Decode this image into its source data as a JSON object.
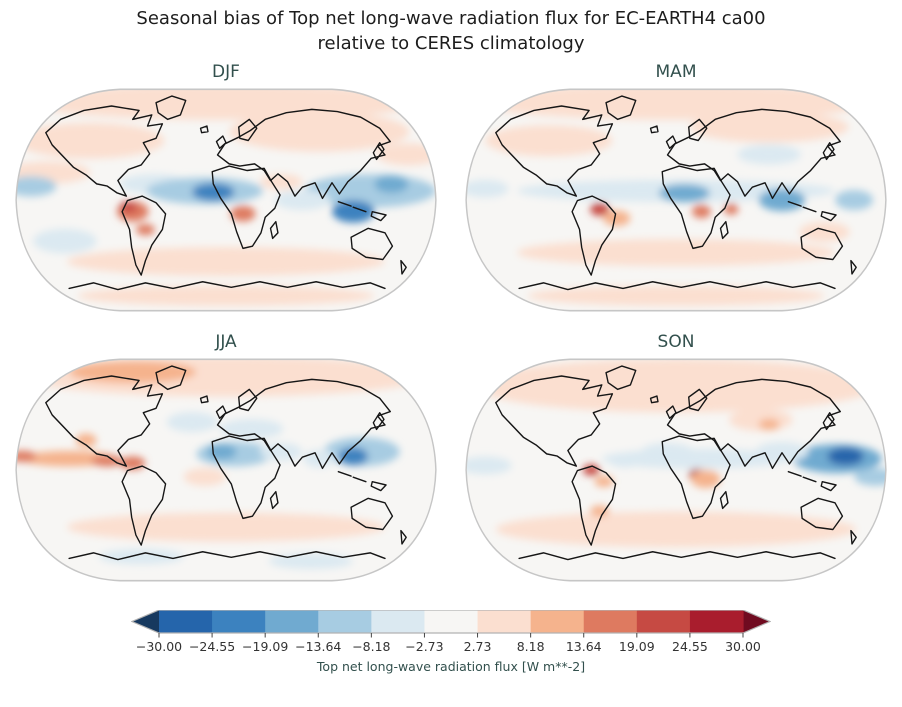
{
  "figure": {
    "title_line1": "Seasonal bias of Top net long-wave radiation flux for EC-EARTH4 ca00",
    "title_line2": "relative to CERES climatology"
  },
  "panels": [
    {
      "label": "DJF"
    },
    {
      "label": "MAM"
    },
    {
      "label": "JJA"
    },
    {
      "label": "SON"
    }
  ],
  "colorbar": {
    "label": "Top net long-wave radiation flux [W m**-2]"
  },
  "colors": {
    "title": "#1d1d1d",
    "panel_title": "#32504d",
    "tick_label": "#333333",
    "colorbar_label": "#32504d",
    "coastline": "#161616",
    "map_edge": "#c6c6c6",
    "map_base": "#f7f6f4"
  },
  "chart_data": {
    "type": "heatmap",
    "subtype": "filled-contour global bias maps, Robinson projection, 2x2 seasonal panels",
    "title": "Seasonal bias of Top net long-wave radiation flux for EC-EARTH4 ca00 relative to CERES climatology",
    "variable": "Top net long-wave radiation flux",
    "units": "W m**-2",
    "model": "EC-EARTH4 ca00",
    "reference": "CERES climatology",
    "panels": [
      "DJF",
      "MAM",
      "JJA",
      "SON"
    ],
    "colorbar": {
      "orientation": "horizontal",
      "extend": "both",
      "levels": [
        -30.0,
        -24.55,
        -19.09,
        -13.64,
        -8.18,
        -2.73,
        2.73,
        8.18,
        13.64,
        19.09,
        24.55,
        30.0
      ],
      "tick_labels": [
        "−30.00",
        "−24.55",
        "−19.09",
        "−13.64",
        "−8.18",
        "−2.73",
        "2.73",
        "8.18",
        "13.64",
        "19.09",
        "24.55",
        "30.00"
      ],
      "colors": [
        "#2565ab",
        "#3c82bf",
        "#70aad0",
        "#a7cce2",
        "#dbe9f1",
        "#f7f6f4",
        "#fbdfd0",
        "#f5b38d",
        "#de7a60",
        "#c64a43",
        "#a91d2d"
      ],
      "under": "#17395f",
      "over": "#700b20",
      "label": "Top net long-wave radiation flux [W m**-2]"
    },
    "blob_format": "[x_fraction, y_fraction, rx_px_of_400w, ry_px_of_205h, bias_value_W_per_m2]",
    "anomaly_blobs": {
      "DJF": [
        [
          0.5,
          0.07,
          190,
          16,
          5
        ],
        [
          0.18,
          0.24,
          70,
          16,
          4
        ],
        [
          0.72,
          0.2,
          85,
          18,
          4
        ],
        [
          0.08,
          0.38,
          40,
          10,
          6
        ],
        [
          0.93,
          0.3,
          30,
          10,
          6
        ],
        [
          0.33,
          0.43,
          32,
          9,
          -8
        ],
        [
          0.45,
          0.46,
          55,
          12,
          -12
        ],
        [
          0.47,
          0.465,
          20,
          8,
          -21
        ],
        [
          0.04,
          0.44,
          24,
          9,
          -12
        ],
        [
          0.84,
          0.46,
          62,
          15,
          -13
        ],
        [
          0.8,
          0.55,
          20,
          10,
          -21
        ],
        [
          0.89,
          0.43,
          16,
          8,
          -18
        ],
        [
          0.68,
          0.5,
          26,
          9,
          -7
        ],
        [
          0.28,
          0.55,
          15,
          9,
          15
        ],
        [
          0.27,
          0.53,
          8,
          5,
          22
        ],
        [
          0.31,
          0.63,
          9,
          5,
          14
        ],
        [
          0.54,
          0.56,
          12,
          7,
          14
        ],
        [
          0.63,
          0.42,
          20,
          7,
          6
        ],
        [
          0.12,
          0.68,
          30,
          11,
          -6
        ],
        [
          0.5,
          0.77,
          150,
          13,
          4
        ],
        [
          0.5,
          0.92,
          140,
          9,
          5
        ]
      ],
      "MAM": [
        [
          0.5,
          0.07,
          190,
          16,
          4
        ],
        [
          0.2,
          0.24,
          60,
          14,
          5
        ],
        [
          0.72,
          0.18,
          75,
          14,
          5
        ],
        [
          0.72,
          0.3,
          30,
          9,
          -5
        ],
        [
          0.5,
          0.46,
          150,
          10,
          -8
        ],
        [
          0.52,
          0.47,
          24,
          8,
          -15
        ],
        [
          0.75,
          0.5,
          22,
          10,
          -16
        ],
        [
          0.92,
          0.5,
          18,
          9,
          -13
        ],
        [
          0.05,
          0.45,
          22,
          8,
          -8
        ],
        [
          0.32,
          0.54,
          9,
          6,
          20
        ],
        [
          0.36,
          0.58,
          13,
          7,
          9
        ],
        [
          0.56,
          0.55,
          9,
          6,
          16
        ],
        [
          0.63,
          0.54,
          7,
          5,
          15
        ],
        [
          0.85,
          0.64,
          24,
          9,
          6
        ],
        [
          0.5,
          0.73,
          150,
          12,
          5
        ],
        [
          0.5,
          0.92,
          140,
          9,
          4
        ]
      ],
      "JJA": [
        [
          0.5,
          0.09,
          190,
          18,
          8
        ],
        [
          0.28,
          0.07,
          60,
          10,
          10
        ],
        [
          0.42,
          0.29,
          24,
          9,
          -4
        ],
        [
          0.56,
          0.32,
          30,
          9,
          -6
        ],
        [
          0.52,
          0.43,
          36,
          11,
          -11
        ],
        [
          0.49,
          0.42,
          14,
          7,
          -16
        ],
        [
          0.63,
          0.42,
          20,
          8,
          -8
        ],
        [
          0.13,
          0.45,
          46,
          7,
          13
        ],
        [
          0.22,
          0.46,
          15,
          5,
          19
        ],
        [
          0.02,
          0.44,
          13,
          5,
          16
        ],
        [
          0.28,
          0.47,
          12,
          6,
          14
        ],
        [
          0.17,
          0.37,
          10,
          6,
          10
        ],
        [
          0.82,
          0.42,
          36,
          13,
          -13
        ],
        [
          0.8,
          0.44,
          14,
          8,
          -21
        ],
        [
          0.72,
          0.45,
          15,
          8,
          -8
        ],
        [
          0.45,
          0.53,
          20,
          8,
          6
        ],
        [
          0.5,
          0.75,
          150,
          13,
          5
        ],
        [
          0.3,
          0.88,
          40,
          7,
          -4
        ],
        [
          0.7,
          0.9,
          40,
          7,
          -4
        ]
      ],
      "SON": [
        [
          0.5,
          0.13,
          190,
          24,
          5
        ],
        [
          0.5,
          0.76,
          170,
          16,
          5
        ],
        [
          0.7,
          0.28,
          30,
          10,
          7
        ],
        [
          0.72,
          0.3,
          10,
          5,
          12
        ],
        [
          0.55,
          0.45,
          90,
          9,
          -7
        ],
        [
          0.48,
          0.42,
          25,
          8,
          -8
        ],
        [
          0.88,
          0.45,
          42,
          13,
          -15
        ],
        [
          0.9,
          0.44,
          17,
          8,
          -26
        ],
        [
          0.97,
          0.53,
          20,
          8,
          -11
        ],
        [
          0.75,
          0.42,
          25,
          9,
          -7
        ],
        [
          0.3,
          0.5,
          8,
          5,
          24
        ],
        [
          0.33,
          0.55,
          9,
          5,
          12
        ],
        [
          0.55,
          0.52,
          8,
          5,
          26
        ],
        [
          0.57,
          0.54,
          14,
          8,
          9
        ],
        [
          0.32,
          0.68,
          9,
          5,
          10
        ],
        [
          0.05,
          0.48,
          25,
          8,
          -6
        ],
        [
          0.38,
          0.46,
          15,
          6,
          -6
        ]
      ]
    }
  }
}
